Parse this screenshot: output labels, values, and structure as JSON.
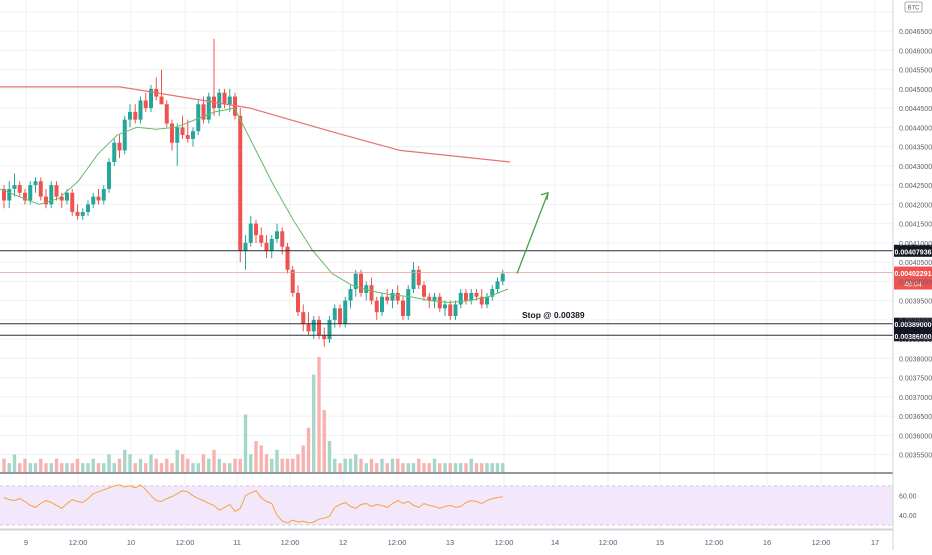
{
  "currency_badge": "BTC",
  "chart_data": [
    {
      "type": "candlestick",
      "panel": "price",
      "ylim": [
        0.00351,
        0.00471
      ],
      "y_ticks": [
        "0.00355000",
        "0.00360000",
        "0.00365000",
        "0.00370000",
        "0.00375000",
        "0.00380000",
        "0.00385000",
        "0.00390000",
        "0.00395000",
        "0.00400000",
        "0.00405000",
        "0.00410000",
        "0.00415000",
        "0.00420000",
        "0.00425000",
        "0.00430000",
        "0.00435000",
        "0.00440000",
        "0.00445000",
        "0.00450000",
        "0.00455000",
        "0.00460000",
        "0.00465000",
        "0.00470000"
      ],
      "x_ticks": [
        "9",
        "12:00",
        "10",
        "12:00",
        "11",
        "12:00",
        "12",
        "12:00",
        "13",
        "12:00",
        "14",
        "12:00",
        "15",
        "12:00",
        "16",
        "12:00",
        "17"
      ],
      "ohlc": [
        [
          0.00424,
          0.00425,
          0.00419,
          0.00421
        ],
        [
          0.00421,
          0.00426,
          0.00419,
          0.00424
        ],
        [
          0.00424,
          0.00428,
          0.00422,
          0.00425
        ],
        [
          0.00425,
          0.00426,
          0.00422,
          0.00423
        ],
        [
          0.00423,
          0.00424,
          0.0042,
          0.00421
        ],
        [
          0.00421,
          0.00426,
          0.0042,
          0.00425
        ],
        [
          0.00425,
          0.00427,
          0.00423,
          0.00426
        ],
        [
          0.00426,
          0.00427,
          0.00421,
          0.00422
        ],
        [
          0.00422,
          0.00424,
          0.00419,
          0.0042
        ],
        [
          0.0042,
          0.00426,
          0.00419,
          0.00425
        ],
        [
          0.00425,
          0.00426,
          0.00421,
          0.00422
        ],
        [
          0.00422,
          0.00423,
          0.00419,
          0.00421
        ],
        [
          0.00421,
          0.00424,
          0.0042,
          0.00423
        ],
        [
          0.00423,
          0.00424,
          0.00417,
          0.00418
        ],
        [
          0.00418,
          0.0042,
          0.00416,
          0.00417
        ],
        [
          0.00417,
          0.00419,
          0.00416,
          0.00418
        ],
        [
          0.00418,
          0.00421,
          0.00417,
          0.0042
        ],
        [
          0.0042,
          0.00423,
          0.00419,
          0.00422
        ],
        [
          0.00422,
          0.00424,
          0.0042,
          0.00421
        ],
        [
          0.00421,
          0.00425,
          0.0042,
          0.00424
        ],
        [
          0.00424,
          0.00432,
          0.00423,
          0.00431
        ],
        [
          0.00431,
          0.00437,
          0.0043,
          0.00436
        ],
        [
          0.00436,
          0.00438,
          0.00432,
          0.00434
        ],
        [
          0.00434,
          0.00443,
          0.00433,
          0.00442
        ],
        [
          0.00442,
          0.00446,
          0.0044,
          0.00444
        ],
        [
          0.00444,
          0.00446,
          0.00441,
          0.00442
        ],
        [
          0.00442,
          0.00448,
          0.00441,
          0.00447
        ],
        [
          0.00447,
          0.00449,
          0.00444,
          0.00445
        ],
        [
          0.00445,
          0.00451,
          0.00444,
          0.0045
        ],
        [
          0.0045,
          0.00453,
          0.00447,
          0.00448
        ],
        [
          0.00448,
          0.00455,
          0.00446,
          0.00446
        ],
        [
          0.00446,
          0.00447,
          0.0044,
          0.00441
        ],
        [
          0.00441,
          0.00442,
          0.00434,
          0.00436
        ],
        [
          0.00436,
          0.00441,
          0.0043,
          0.0044
        ],
        [
          0.0044,
          0.00443,
          0.00437,
          0.00438
        ],
        [
          0.00438,
          0.00442,
          0.00436,
          0.00437
        ],
        [
          0.00437,
          0.0044,
          0.00435,
          0.00439
        ],
        [
          0.00439,
          0.00447,
          0.00438,
          0.00446
        ],
        [
          0.00446,
          0.00448,
          0.00441,
          0.00442
        ],
        [
          0.00442,
          0.00449,
          0.00441,
          0.00448
        ],
        [
          0.00448,
          0.00463,
          0.00443,
          0.00445
        ],
        [
          0.00445,
          0.0045,
          0.00443,
          0.00449
        ],
        [
          0.00449,
          0.0045,
          0.00445,
          0.00446
        ],
        [
          0.00446,
          0.0045,
          0.00444,
          0.00448
        ],
        [
          0.00448,
          0.00449,
          0.00442,
          0.00443
        ],
        [
          0.00443,
          0.00445,
          0.00405,
          0.00408
        ],
        [
          0.00408,
          0.00412,
          0.00403,
          0.0041
        ],
        [
          0.0041,
          0.00417,
          0.00409,
          0.00415
        ],
        [
          0.00415,
          0.00416,
          0.0041,
          0.00412
        ],
        [
          0.00412,
          0.00414,
          0.00409,
          0.0041
        ],
        [
          0.0041,
          0.00412,
          0.00406,
          0.00408
        ],
        [
          0.00408,
          0.00412,
          0.00406,
          0.00411
        ],
        [
          0.00411,
          0.00415,
          0.0041,
          0.00413
        ],
        [
          0.00413,
          0.00414,
          0.00407,
          0.00409
        ],
        [
          0.00409,
          0.0041,
          0.00402,
          0.00403
        ],
        [
          0.00403,
          0.00404,
          0.00396,
          0.00397
        ],
        [
          0.00397,
          0.00399,
          0.00391,
          0.00392
        ],
        [
          0.00392,
          0.00394,
          0.00387,
          0.00389
        ],
        [
          0.00389,
          0.00392,
          0.00386,
          0.00387
        ],
        [
          0.00387,
          0.00391,
          0.00385,
          0.0039
        ],
        [
          0.0039,
          0.00391,
          0.00385,
          0.00386
        ],
        [
          0.00386,
          0.00388,
          0.00383,
          0.00385
        ],
        [
          0.00385,
          0.00391,
          0.00384,
          0.0039
        ],
        [
          0.0039,
          0.00394,
          0.00388,
          0.00393
        ],
        [
          0.00393,
          0.00394,
          0.00388,
          0.00389
        ],
        [
          0.00389,
          0.00396,
          0.00388,
          0.00395
        ],
        [
          0.00395,
          0.00399,
          0.00393,
          0.00398
        ],
        [
          0.00398,
          0.00403,
          0.00396,
          0.00402
        ],
        [
          0.00402,
          0.00403,
          0.00396,
          0.00397
        ],
        [
          0.00397,
          0.004,
          0.00395,
          0.00399
        ],
        [
          0.00399,
          0.00401,
          0.00394,
          0.00395
        ],
        [
          0.00395,
          0.00396,
          0.0039,
          0.00392
        ],
        [
          0.00392,
          0.00397,
          0.00391,
          0.00396
        ],
        [
          0.00396,
          0.00398,
          0.00394,
          0.00395
        ],
        [
          0.00395,
          0.00398,
          0.00393,
          0.00397
        ],
        [
          0.00397,
          0.00399,
          0.00394,
          0.00395
        ],
        [
          0.00395,
          0.00396,
          0.0039,
          0.00391
        ],
        [
          0.00391,
          0.00399,
          0.0039,
          0.00398
        ],
        [
          0.00398,
          0.00405,
          0.00397,
          0.00403
        ],
        [
          0.00403,
          0.00404,
          0.00398,
          0.00399
        ],
        [
          0.00399,
          0.004,
          0.00395,
          0.00396
        ],
        [
          0.00396,
          0.00397,
          0.00393,
          0.00395
        ],
        [
          0.00395,
          0.00397,
          0.00393,
          0.00396
        ],
        [
          0.00396,
          0.00397,
          0.00392,
          0.00393
        ],
        [
          0.00393,
          0.00395,
          0.00391,
          0.00394
        ],
        [
          0.00394,
          0.00395,
          0.0039,
          0.00391
        ],
        [
          0.00391,
          0.00395,
          0.0039,
          0.00394
        ],
        [
          0.00394,
          0.00398,
          0.00393,
          0.00397
        ],
        [
          0.00397,
          0.00398,
          0.00394,
          0.00395
        ],
        [
          0.00395,
          0.00398,
          0.00394,
          0.00397
        ],
        [
          0.00397,
          0.00398,
          0.00395,
          0.00396
        ],
        [
          0.00396,
          0.00398,
          0.00393,
          0.00394
        ],
        [
          0.00394,
          0.00397,
          0.00393,
          0.00396
        ],
        [
          0.00396,
          0.00399,
          0.00395,
          0.00398
        ],
        [
          0.00398,
          0.00401,
          0.00397,
          0.004
        ],
        [
          0.004,
          0.00403,
          0.00399,
          0.00402
        ]
      ],
      "ma_slow": [
        0.004505,
        0.00445,
        0.00439,
        0.00434,
        0.00431
      ],
      "ma_fast": [
        0.00424,
        0.00422,
        0.0042,
        0.004215,
        0.00426,
        0.00433,
        0.00438,
        0.0044,
        0.004395,
        0.0044,
        0.00442,
        0.00444,
        0.00445,
        0.00435,
        0.00425,
        0.00416,
        0.00408,
        0.00402,
        0.00399,
        0.003975,
        0.003965,
        0.00396,
        0.00395,
        0.003945,
        0.00395,
        0.00396,
        0.00398
      ],
      "horizontal_lines": [
        {
          "value": 0.00407936,
          "label": "0.00407936",
          "style": "dark"
        },
        {
          "value": 0.00402291,
          "label": "0.00402291",
          "style": "last-price"
        },
        {
          "value": 0.00389,
          "label": "0.00389000",
          "style": "dark"
        },
        {
          "value": 0.00386,
          "label": "0.00386000",
          "style": "dark"
        }
      ],
      "last_price_countdown": "46:04",
      "annotation": "Stop @ 0.00389",
      "projection_arrow": {
        "from_x": "12:00 on 13",
        "direction": "up"
      },
      "colors": {
        "up": "#26a69a",
        "down": "#ef5350",
        "ma_slow": "#e57373",
        "ma_fast": "#66bb6a",
        "arrow": "#43a047"
      }
    },
    {
      "type": "bar",
      "panel": "volume",
      "values": [
        3,
        2,
        4,
        2,
        3,
        2,
        2,
        3,
        2,
        2,
        3,
        2,
        2,
        2,
        3,
        2,
        2,
        3,
        2,
        2,
        4,
        2,
        3,
        5,
        4,
        2,
        3,
        2,
        4,
        3,
        2,
        3,
        2,
        5,
        4,
        3,
        2,
        2,
        4,
        3,
        5,
        3,
        2,
        2,
        3,
        3,
        13,
        4,
        7,
        6,
        4,
        3,
        5,
        3,
        3,
        3,
        4,
        6,
        10,
        22,
        26,
        14,
        7,
        3,
        2,
        3,
        3,
        4,
        3,
        2,
        3,
        2,
        3,
        2,
        3,
        3,
        2,
        2,
        2,
        3,
        2,
        2,
        3,
        2,
        2,
        2,
        2,
        2,
        2,
        3,
        2,
        2,
        2,
        2,
        2,
        2
      ]
    },
    {
      "type": "line",
      "panel": "rsi",
      "ylim": [
        30,
        75
      ],
      "y_ticks": [
        "40.00",
        "60.00"
      ],
      "band": [
        30,
        70
      ],
      "values": [
        58,
        56,
        55,
        57,
        54,
        50,
        48,
        52,
        55,
        53,
        50,
        47,
        52,
        56,
        54,
        53,
        57,
        62,
        64,
        66,
        68,
        70,
        71,
        69,
        70,
        68,
        71,
        66,
        60,
        55,
        54,
        57,
        59,
        62,
        65,
        64,
        60,
        57,
        55,
        52,
        50,
        45,
        48,
        51,
        44,
        47,
        60,
        63,
        65,
        58,
        54,
        52,
        40,
        34,
        32,
        35,
        33,
        34,
        32,
        33,
        36,
        37,
        39,
        48,
        51,
        53,
        49,
        47,
        51,
        52,
        49,
        51,
        50,
        48,
        52,
        55,
        52,
        54,
        50,
        48,
        52,
        50,
        49,
        47,
        49,
        50,
        48,
        49,
        53,
        55,
        54,
        52,
        55,
        57,
        58,
        59
      ]
    }
  ]
}
